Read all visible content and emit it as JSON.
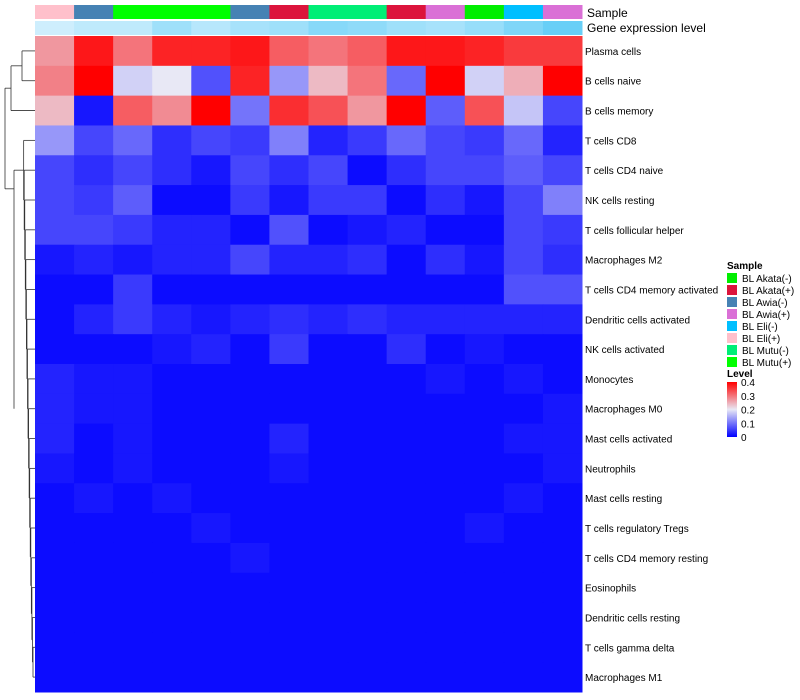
{
  "chart_data": {
    "type": "heatmap",
    "annotation_labels": [
      "Sample",
      "Gene expression level"
    ],
    "columns": [
      {
        "sample": "BL Eli(+)",
        "expr": 0.2
      },
      {
        "sample": "BL Awia(-)",
        "expr": 0.3
      },
      {
        "sample": "BL Mutu(+)",
        "expr": 0.3
      },
      {
        "sample": "BL Mutu(+)",
        "expr": 0.5
      },
      {
        "sample": "BL Mutu(+)",
        "expr": 0.35
      },
      {
        "sample": "BL Awia(-)",
        "expr": 0.45
      },
      {
        "sample": "BL Akata(+)",
        "expr": 0.5
      },
      {
        "sample": "BL Mutu(-)",
        "expr": 0.65
      },
      {
        "sample": "BL Mutu(-)",
        "expr": 0.6
      },
      {
        "sample": "BL Akata(+)",
        "expr": 0.5
      },
      {
        "sample": "BL Awia(+)",
        "expr": 0.45
      },
      {
        "sample": "BL Akata(-)",
        "expr": 0.55
      },
      {
        "sample": "BL Eli(-)",
        "expr": 0.7
      },
      {
        "sample": "BL Awia(+)",
        "expr": 0.85
      }
    ],
    "rows": [
      "Plasma cells",
      "B cells naive",
      "B cells memory",
      "T cells CD8",
      "T cells CD4 naive",
      "NK cells resting",
      "T cells follicular helper",
      "Macrophages M2",
      "T cells CD4 memory activated",
      "Dendritic cells activated",
      "NK cells activated",
      "Monocytes",
      "Macrophages M0",
      "Mast cells activated",
      "Neutrophils",
      "Mast cells resting",
      "T cells regulatory  Tregs",
      "T cells CD4 memory resting",
      "Eosinophils",
      "Dendritic cells resting",
      "T cells gamma delta",
      "Macrophages M1"
    ],
    "values": [
      [
        0.27,
        0.38,
        0.3,
        0.37,
        0.37,
        0.38,
        0.32,
        0.3,
        0.32,
        0.38,
        0.38,
        0.37,
        0.35,
        0.35
      ],
      [
        0.29,
        0.4,
        0.18,
        0.2,
        0.07,
        0.37,
        0.13,
        0.24,
        0.3,
        0.09,
        0.4,
        0.18,
        0.25,
        0.4
      ],
      [
        0.24,
        0.02,
        0.32,
        0.28,
        0.4,
        0.1,
        0.36,
        0.33,
        0.27,
        0.4,
        0.08,
        0.33,
        0.17,
        0.06
      ],
      [
        0.13,
        0.06,
        0.09,
        0.04,
        0.06,
        0.05,
        0.11,
        0.03,
        0.05,
        0.09,
        0.06,
        0.05,
        0.09,
        0.03
      ],
      [
        0.06,
        0.04,
        0.06,
        0.04,
        0.02,
        0.06,
        0.04,
        0.06,
        0.01,
        0.04,
        0.06,
        0.06,
        0.08,
        0.06
      ],
      [
        0.06,
        0.05,
        0.08,
        0.01,
        0.01,
        0.05,
        0.02,
        0.05,
        0.05,
        0.01,
        0.04,
        0.02,
        0.06,
        0.11
      ],
      [
        0.06,
        0.06,
        0.05,
        0.03,
        0.03,
        0.01,
        0.07,
        0.01,
        0.02,
        0.03,
        0.01,
        0.01,
        0.06,
        0.05
      ],
      [
        0.02,
        0.03,
        0.02,
        0.03,
        0.03,
        0.06,
        0.03,
        0.03,
        0.04,
        0.01,
        0.04,
        0.02,
        0.06,
        0.04
      ],
      [
        0.01,
        0.01,
        0.05,
        0.01,
        0.01,
        0.01,
        0.01,
        0.01,
        0.01,
        0.01,
        0.01,
        0.01,
        0.07,
        0.07
      ],
      [
        0.01,
        0.03,
        0.05,
        0.03,
        0.02,
        0.03,
        0.04,
        0.03,
        0.04,
        0.03,
        0.03,
        0.03,
        0.03,
        0.03
      ],
      [
        0.01,
        0.01,
        0.01,
        0.02,
        0.03,
        0.01,
        0.05,
        0.01,
        0.01,
        0.04,
        0.01,
        0.02,
        0.01,
        0.01
      ],
      [
        0.03,
        0.02,
        0.02,
        0.01,
        0.01,
        0.01,
        0.01,
        0.01,
        0.01,
        0.01,
        0.02,
        0.01,
        0.02,
        0.01
      ],
      [
        0.03,
        0.02,
        0.02,
        0.01,
        0.01,
        0.01,
        0.01,
        0.01,
        0.01,
        0.01,
        0.01,
        0.01,
        0.01,
        0.02
      ],
      [
        0.03,
        0.01,
        0.02,
        0.01,
        0.01,
        0.01,
        0.03,
        0.01,
        0.01,
        0.01,
        0.01,
        0.01,
        0.02,
        0.02
      ],
      [
        0.02,
        0.01,
        0.02,
        0.01,
        0.01,
        0.01,
        0.02,
        0.01,
        0.01,
        0.01,
        0.01,
        0.01,
        0.01,
        0.02
      ],
      [
        0.01,
        0.02,
        0.01,
        0.02,
        0.01,
        0.01,
        0.01,
        0.01,
        0.01,
        0.01,
        0.01,
        0.01,
        0.02,
        0.01
      ],
      [
        0.01,
        0.01,
        0.01,
        0.01,
        0.02,
        0.01,
        0.01,
        0.01,
        0.01,
        0.01,
        0.01,
        0.02,
        0.01,
        0.01
      ],
      [
        0.01,
        0.01,
        0.01,
        0.01,
        0.01,
        0.02,
        0.01,
        0.01,
        0.01,
        0.01,
        0.01,
        0.01,
        0.01,
        0.01
      ],
      [
        0.01,
        0.01,
        0.01,
        0.01,
        0.01,
        0.01,
        0.01,
        0.01,
        0.01,
        0.01,
        0.01,
        0.01,
        0.01,
        0.01
      ],
      [
        0.01,
        0.01,
        0.01,
        0.01,
        0.01,
        0.01,
        0.01,
        0.01,
        0.01,
        0.01,
        0.01,
        0.01,
        0.01,
        0.01
      ],
      [
        0.01,
        0.01,
        0.01,
        0.01,
        0.01,
        0.01,
        0.01,
        0.01,
        0.01,
        0.01,
        0.01,
        0.01,
        0.01,
        0.01
      ],
      [
        0.01,
        0.01,
        0.01,
        0.01,
        0.01,
        0.01,
        0.01,
        0.01,
        0.01,
        0.01,
        0.01,
        0.01,
        0.01,
        0.01
      ]
    ],
    "color_scale": {
      "low": "#0000ff",
      "mid": "#e8e8f5",
      "high": "#ff0000",
      "range": [
        0,
        0.4
      ]
    },
    "legend_sample": {
      "title": "Sample",
      "entries": [
        {
          "name": "BL Akata(-)",
          "color": "#00ee00"
        },
        {
          "name": "BL Akata(+)",
          "color": "#dc143c"
        },
        {
          "name": "BL Awia(-)",
          "color": "#4682b4"
        },
        {
          "name": "BL Awia(+)",
          "color": "#da70d6"
        },
        {
          "name": "BL Eli(-)",
          "color": "#00bfff"
        },
        {
          "name": "BL Eli(+)",
          "color": "#ffc0cb"
        },
        {
          "name": "BL Mutu(-)",
          "color": "#00ee76"
        },
        {
          "name": "BL Mutu(+)",
          "color": "#00ff00"
        }
      ]
    },
    "legend_level": {
      "title": "Level",
      "ticks": [
        "0.4",
        "0.3",
        "0.2",
        "0.1",
        "0"
      ]
    }
  }
}
